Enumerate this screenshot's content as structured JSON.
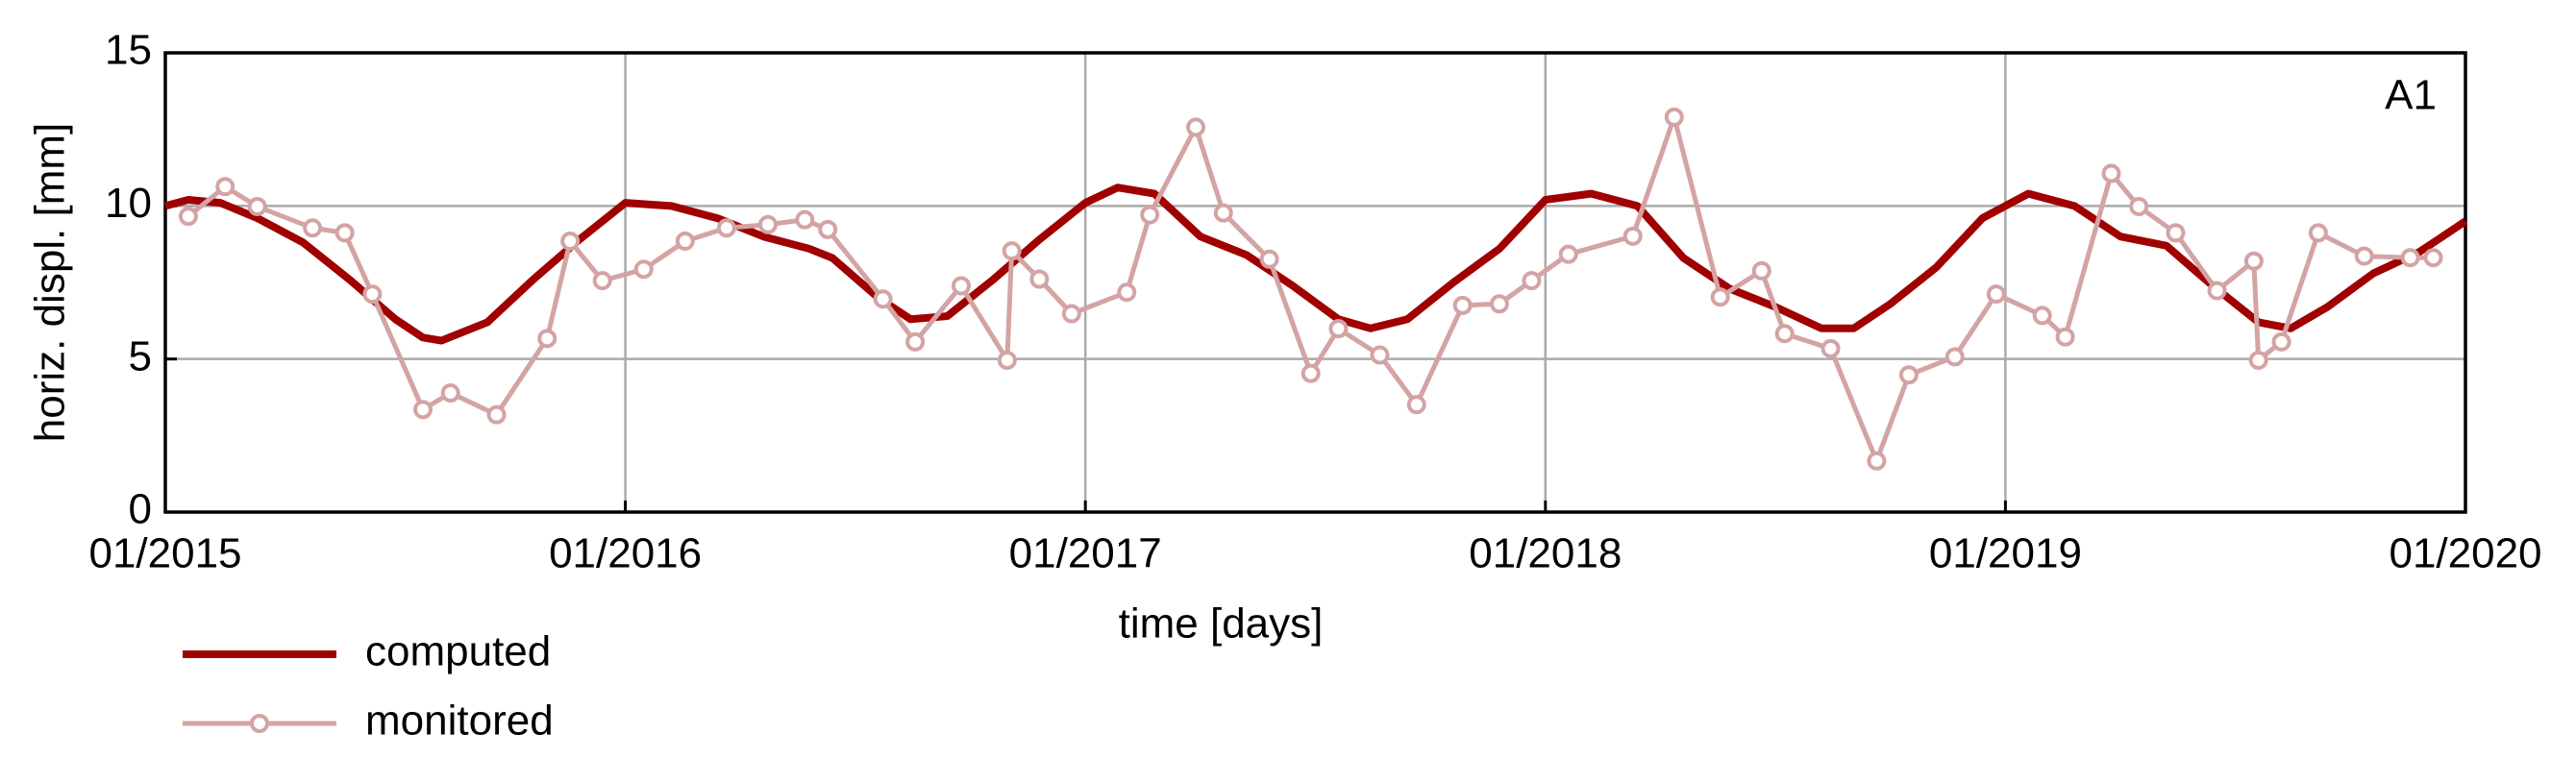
{
  "chart_data": {
    "type": "line",
    "annotation": "A1",
    "x_label": "time [days]",
    "y_label": "horiz. displ. [mm]",
    "xlim": [
      2015,
      2020
    ],
    "ylim": [
      0,
      15
    ],
    "xticks": [
      {
        "value": 2015,
        "label": "01/2015"
      },
      {
        "value": 2016,
        "label": "01/2016"
      },
      {
        "value": 2017,
        "label": "01/2017"
      },
      {
        "value": 2018,
        "label": "01/2018"
      },
      {
        "value": 2019,
        "label": "01/2019"
      },
      {
        "value": 2020,
        "label": "01/2020"
      }
    ],
    "yticks": [
      0,
      5,
      10,
      15
    ],
    "grid": true,
    "legend": "below-left",
    "series": [
      {
        "name": "computed",
        "color": "#a00000",
        "markers": false,
        "x": [
          2015.0,
          2015.05,
          2015.12,
          2015.2,
          2015.3,
          2015.4,
          2015.5,
          2015.56,
          2015.6,
          2015.7,
          2015.8,
          2015.9,
          2016.0,
          2016.1,
          2016.2,
          2016.3,
          2016.4,
          2016.45,
          2016.55,
          2016.62,
          2016.7,
          2016.8,
          2016.9,
          2017.0,
          2017.07,
          2017.15,
          2017.25,
          2017.35,
          2017.45,
          2017.55,
          2017.62,
          2017.7,
          2017.8,
          2017.9,
          2018.0,
          2018.1,
          2018.2,
          2018.3,
          2018.4,
          2018.5,
          2018.6,
          2018.67,
          2018.75,
          2018.85,
          2018.95,
          2019.05,
          2019.15,
          2019.25,
          2019.35,
          2019.45,
          2019.55,
          2019.62,
          2019.7,
          2019.8,
          2019.9,
          2020.0
        ],
        "values": [
          10.0,
          10.2,
          10.1,
          9.6,
          8.8,
          7.6,
          6.3,
          5.7,
          5.6,
          6.2,
          7.6,
          8.9,
          10.1,
          10.0,
          9.6,
          9.0,
          8.6,
          8.3,
          7.0,
          6.3,
          6.4,
          7.6,
          8.9,
          10.1,
          10.6,
          10.4,
          9.0,
          8.4,
          7.4,
          6.3,
          6.0,
          6.3,
          7.5,
          8.6,
          10.2,
          10.4,
          10.0,
          8.3,
          7.3,
          6.7,
          6.0,
          6.0,
          6.8,
          8.0,
          9.6,
          10.4,
          10.0,
          9.0,
          8.7,
          7.4,
          6.2,
          6.0,
          6.7,
          7.8,
          8.5,
          9.5
        ]
      },
      {
        "name": "monitored",
        "color": "#d4a3a3",
        "markers": true,
        "x": [
          2015.05,
          2015.13,
          2015.2,
          2015.32,
          2015.39,
          2015.45,
          2015.56,
          2015.62,
          2015.72,
          2015.83,
          2015.88,
          2015.95,
          2016.04,
          2016.13,
          2016.22,
          2016.31,
          2016.39,
          2016.44,
          2016.56,
          2016.63,
          2016.73,
          2016.83,
          2016.84,
          2016.9,
          2016.97,
          2017.09,
          2017.14,
          2017.24,
          2017.3,
          2017.4,
          2017.49,
          2017.55,
          2017.64,
          2017.72,
          2017.82,
          2017.9,
          2017.97,
          2018.05,
          2018.19,
          2018.28,
          2018.38,
          2018.47,
          2018.52,
          2018.62,
          2018.72,
          2018.79,
          2018.89,
          2018.98,
          2019.08,
          2019.13,
          2019.23,
          2019.29,
          2019.37,
          2019.46,
          2019.54,
          2019.55,
          2019.6,
          2019.68,
          2019.78,
          2019.88,
          2019.93
        ],
        "values": [
          9.66,
          10.63,
          9.98,
          9.28,
          9.12,
          7.12,
          3.35,
          3.89,
          3.18,
          5.67,
          8.85,
          7.56,
          7.93,
          8.85,
          9.28,
          9.39,
          9.55,
          9.23,
          6.96,
          5.56,
          7.39,
          4.96,
          8.53,
          7.61,
          6.48,
          7.18,
          9.71,
          12.57,
          9.77,
          8.26,
          4.53,
          5.99,
          5.13,
          3.51,
          6.75,
          6.8,
          7.56,
          8.42,
          9.01,
          12.9,
          7.02,
          7.88,
          5.83,
          5.34,
          1.67,
          4.48,
          5.07,
          7.12,
          6.42,
          5.72,
          11.06,
          9.98,
          9.12,
          7.23,
          8.2,
          4.96,
          5.56,
          9.12,
          8.36,
          8.31,
          8.31
        ]
      }
    ]
  }
}
